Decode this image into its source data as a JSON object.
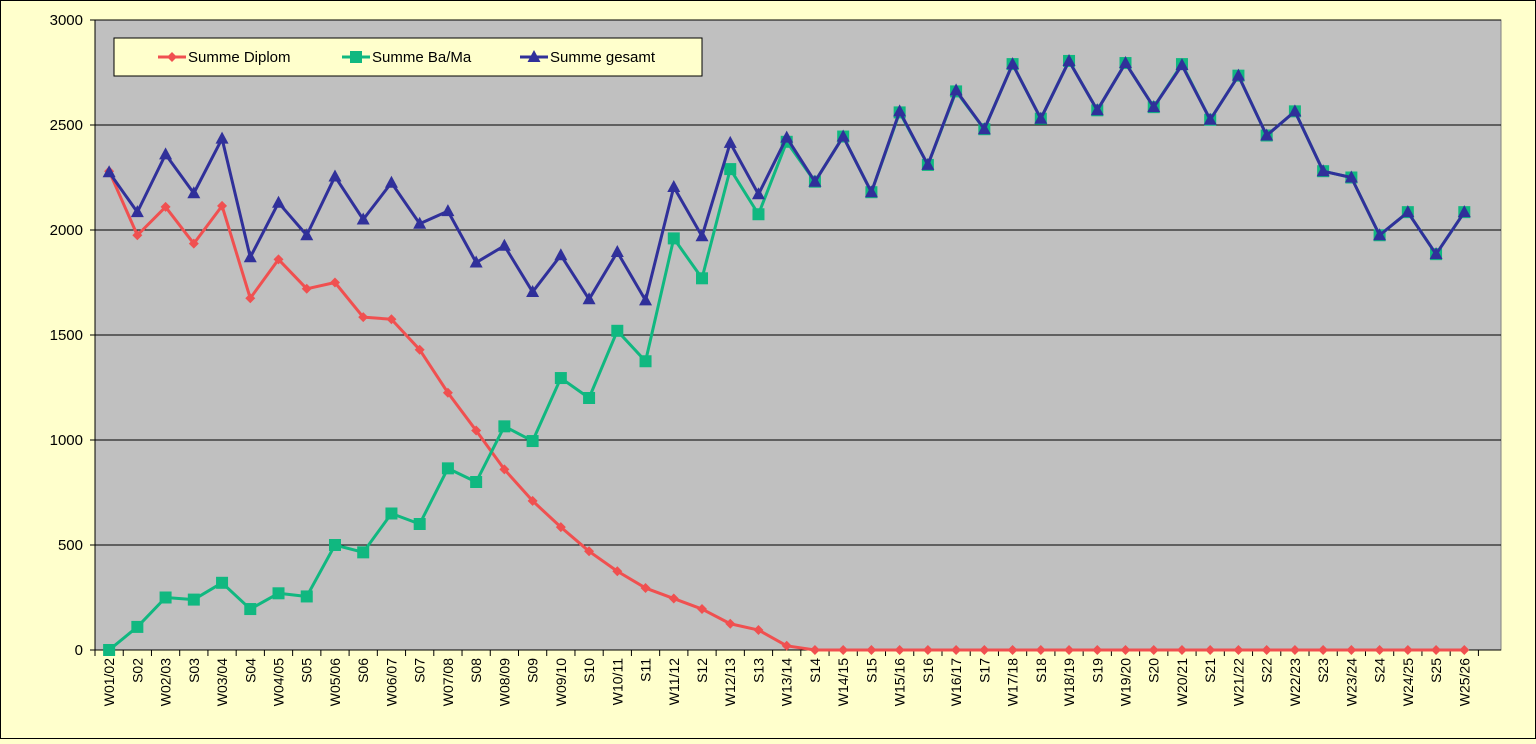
{
  "chart_data": {
    "type": "line",
    "title": "",
    "xlabel": "",
    "ylabel": "",
    "ylim": [
      0,
      3000
    ],
    "yticks": [
      0,
      500,
      1000,
      1500,
      2000,
      2500,
      3000
    ],
    "grid": true,
    "legend_position": "top-left",
    "background_colors": {
      "page": "#ffffcc",
      "plot": "#c0c0c0"
    },
    "categories": [
      "W01/02",
      "S02",
      "W02/03",
      "S03",
      "W03/04",
      "S04",
      "W04/05",
      "S05",
      "W05/06",
      "S06",
      "W06/07",
      "S07",
      "W07/08",
      "S08",
      "W08/09",
      "S09",
      "W09/10",
      "S10",
      "W10/11",
      "S11",
      "W11/12",
      "S12",
      "W12/13",
      "S13",
      "W13/14",
      "S14",
      "W14/15",
      "S15",
      "W15/16",
      "S16",
      "W16/17",
      "S17",
      "W17/18",
      "S18",
      "W18/19",
      "S19",
      "W19/20",
      "S20",
      "W20/21",
      "S21",
      "W21/22",
      "S22",
      "W22/23",
      "S23",
      "W23/24",
      "S24",
      "W24/25",
      "S25",
      "W25/26"
    ],
    "series": [
      {
        "name": "Summe Diplom",
        "color": "#f05050",
        "marker": "diamond",
        "values": [
          2280,
          1975,
          2110,
          1935,
          2115,
          1675,
          1860,
          1720,
          1750,
          1585,
          1575,
          1430,
          1225,
          1045,
          860,
          710,
          585,
          470,
          375,
          295,
          245,
          195,
          125,
          95,
          20,
          0,
          0,
          0,
          0,
          0,
          0,
          0,
          0,
          0,
          0,
          0,
          0,
          0,
          0,
          0,
          0,
          0,
          0,
          0,
          0,
          0,
          0,
          0,
          0
        ]
      },
      {
        "name": "Summe Ba/Ma",
        "color": "#10b880",
        "marker": "square",
        "values": [
          0,
          110,
          250,
          240,
          320,
          195,
          270,
          255,
          500,
          465,
          650,
          600,
          865,
          800,
          1065,
          995,
          1295,
          1200,
          1520,
          1375,
          1960,
          1770,
          2290,
          2075,
          2420,
          2230,
          2445,
          2180,
          2560,
          2310,
          2660,
          2480,
          2790,
          2530,
          2805,
          2570,
          2795,
          2585,
          2790,
          2525,
          2735,
          2450,
          2565,
          2280,
          2250,
          1975,
          2085,
          1885,
          2085
        ]
      },
      {
        "name": "Summe gesamt",
        "color": "#30309a",
        "marker": "triangle",
        "values": [
          2275,
          2085,
          2360,
          2175,
          2435,
          1870,
          2130,
          1975,
          2255,
          2050,
          2225,
          2030,
          2090,
          1845,
          1925,
          1705,
          1880,
          1670,
          1895,
          1665,
          2205,
          1970,
          2415,
          2170,
          2440,
          2230,
          2445,
          2180,
          2565,
          2310,
          2665,
          2480,
          2790,
          2530,
          2805,
          2570,
          2795,
          2585,
          2785,
          2525,
          2735,
          2450,
          2565,
          2280,
          2250,
          1975,
          2085,
          1885,
          2085
        ]
      }
    ]
  }
}
